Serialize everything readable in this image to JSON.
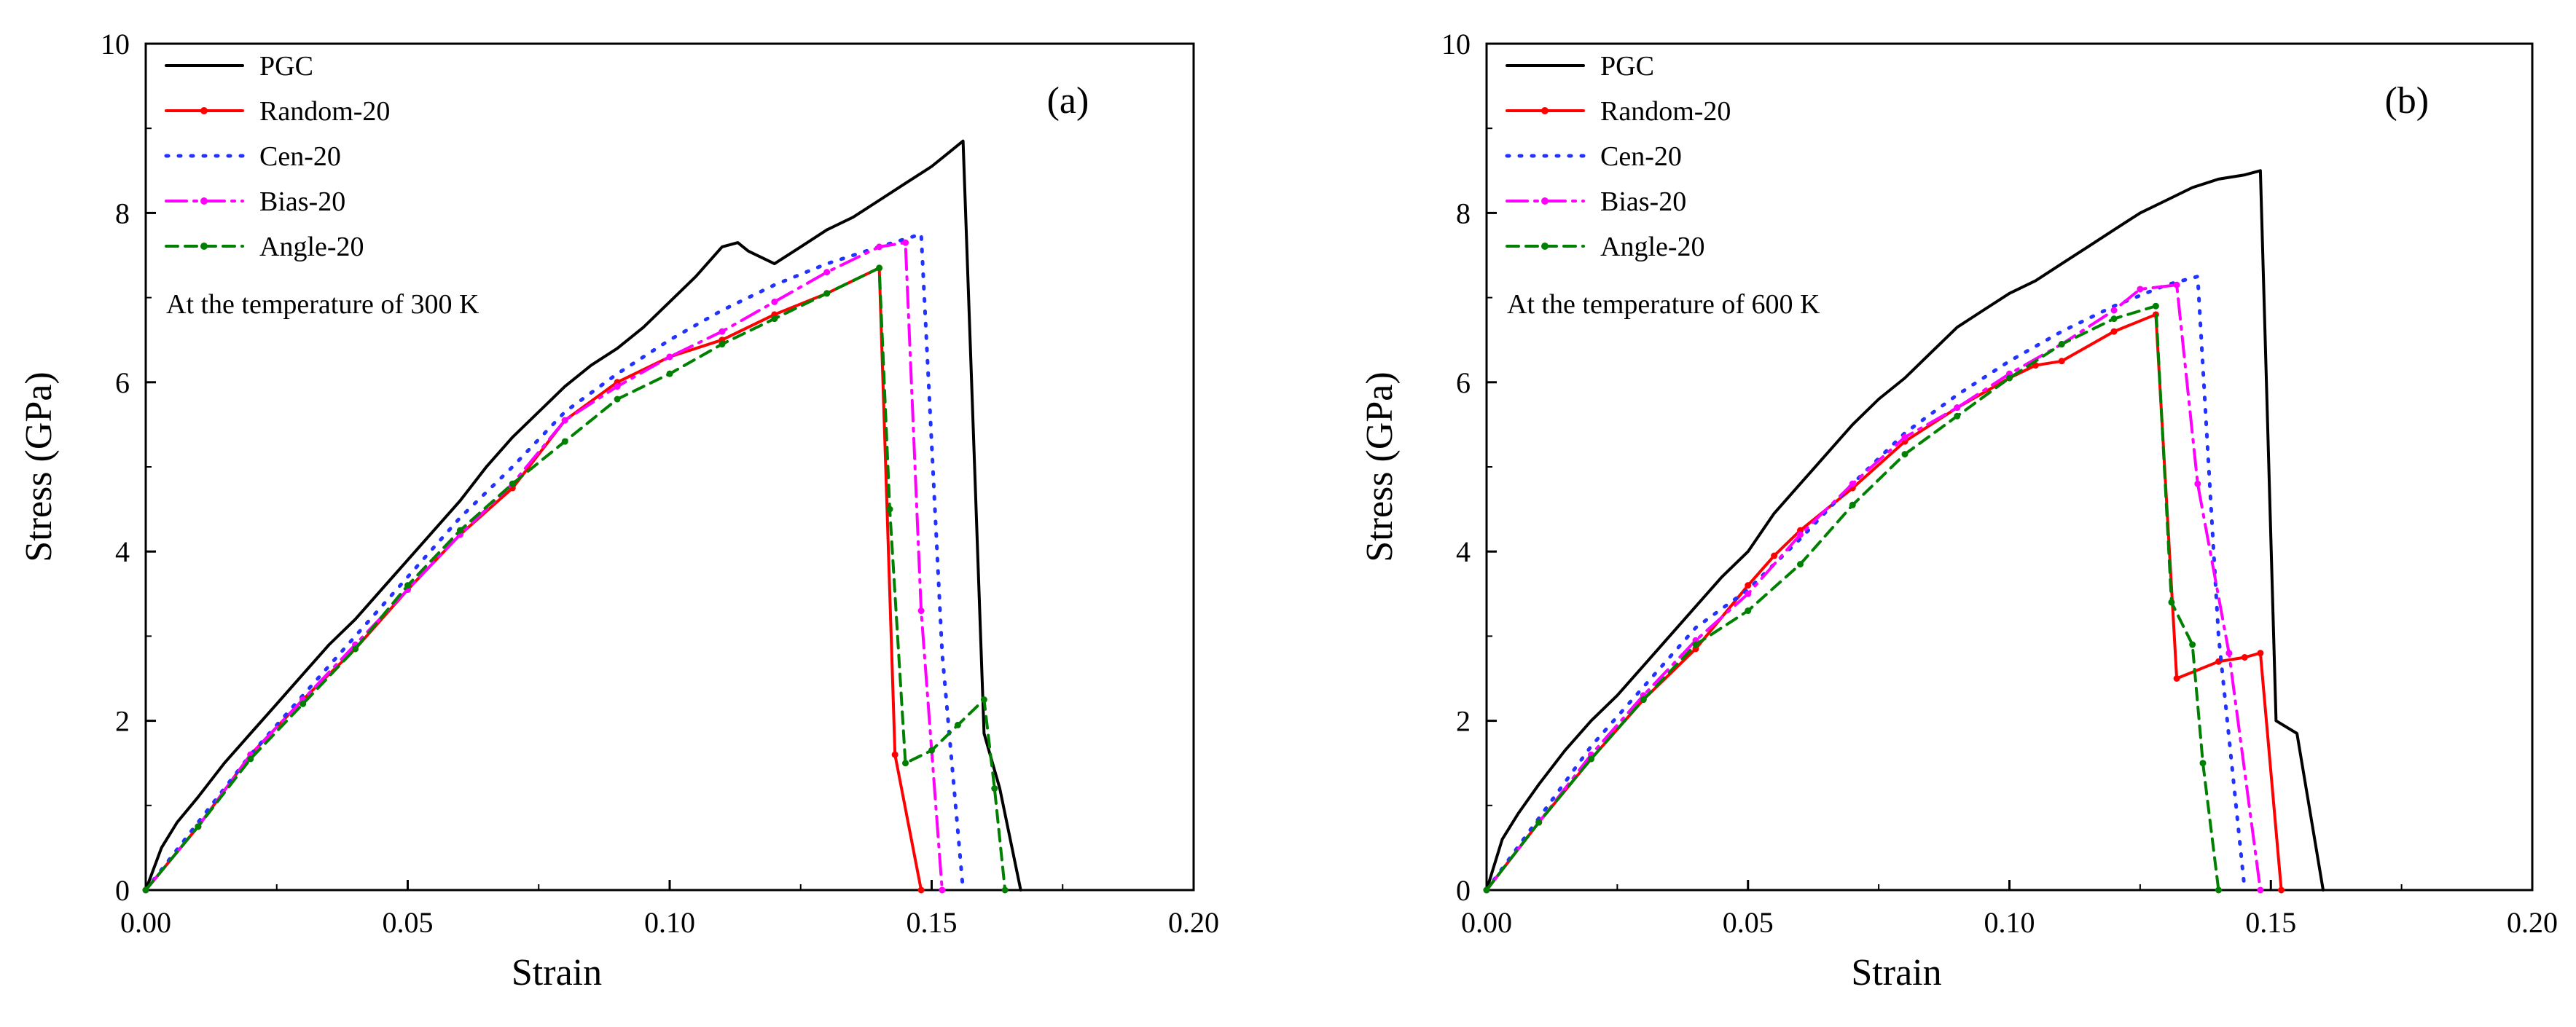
{
  "chart_data": [
    {
      "type": "line",
      "panel_label": "(a)",
      "annotation": "At the temperature of 300 K",
      "xlabel": "Strain",
      "ylabel": "Stress (GPa)",
      "xlim": [
        0,
        0.2
      ],
      "ylim": [
        0,
        10
      ],
      "xticks": [
        "0.00",
        "0.05",
        "0.10",
        "0.15",
        "0.20"
      ],
      "yticks": [
        "0",
        "2",
        "4",
        "6",
        "8",
        "10"
      ],
      "legend": "top-left",
      "series": [
        {
          "name": "PGC",
          "color": "#000000",
          "dash": "solid",
          "marker": false,
          "x": [
            0,
            0.003,
            0.006,
            0.01,
            0.015,
            0.02,
            0.025,
            0.03,
            0.035,
            0.04,
            0.045,
            0.05,
            0.055,
            0.06,
            0.065,
            0.07,
            0.075,
            0.08,
            0.085,
            0.09,
            0.095,
            0.1,
            0.105,
            0.11,
            0.113,
            0.115,
            0.12,
            0.125,
            0.13,
            0.135,
            0.14,
            0.145,
            0.15,
            0.153,
            0.156,
            0.16,
            0.163,
            0.167
          ],
          "y": [
            0,
            0.5,
            0.8,
            1.1,
            1.5,
            1.85,
            2.2,
            2.55,
            2.9,
            3.2,
            3.55,
            3.9,
            4.25,
            4.6,
            5.0,
            5.35,
            5.65,
            5.95,
            6.2,
            6.4,
            6.65,
            6.95,
            7.25,
            7.6,
            7.65,
            7.55,
            7.4,
            7.6,
            7.8,
            7.95,
            8.15,
            8.35,
            8.55,
            8.7,
            8.85,
            1.85,
            1.2,
            0
          ]
        },
        {
          "name": "Random-20",
          "color": "#ff0000",
          "dash": "solid",
          "marker": true,
          "x": [
            0,
            0.01,
            0.02,
            0.03,
            0.04,
            0.05,
            0.06,
            0.07,
            0.08,
            0.09,
            0.1,
            0.11,
            0.12,
            0.13,
            0.14,
            0.143,
            0.148
          ],
          "y": [
            0,
            0.75,
            1.6,
            2.25,
            2.85,
            3.55,
            4.2,
            4.75,
            5.55,
            6.0,
            6.3,
            6.5,
            6.8,
            7.05,
            7.35,
            1.6,
            0
          ]
        },
        {
          "name": "Cen-20",
          "color": "#2233ff",
          "dash": "dot",
          "marker": false,
          "x": [
            0,
            0.01,
            0.02,
            0.03,
            0.04,
            0.05,
            0.06,
            0.07,
            0.08,
            0.09,
            0.1,
            0.11,
            0.12,
            0.13,
            0.14,
            0.148,
            0.152,
            0.156
          ],
          "y": [
            0,
            0.8,
            1.6,
            2.3,
            3.0,
            3.7,
            4.4,
            5.0,
            5.65,
            6.1,
            6.5,
            6.85,
            7.15,
            7.4,
            7.6,
            7.75,
            2.8,
            0
          ]
        },
        {
          "name": "Bias-20",
          "color": "#ff00ff",
          "dash": "dashdot",
          "marker": true,
          "x": [
            0,
            0.01,
            0.02,
            0.03,
            0.04,
            0.05,
            0.06,
            0.07,
            0.08,
            0.09,
            0.1,
            0.11,
            0.12,
            0.13,
            0.14,
            0.145,
            0.148,
            0.152
          ],
          "y": [
            0,
            0.75,
            1.6,
            2.25,
            2.9,
            3.55,
            4.2,
            4.8,
            5.55,
            5.95,
            6.3,
            6.6,
            6.95,
            7.3,
            7.6,
            7.65,
            3.3,
            0
          ]
        },
        {
          "name": "Angle-20",
          "color": "#008000",
          "dash": "dash",
          "marker": true,
          "x": [
            0,
            0.01,
            0.02,
            0.03,
            0.04,
            0.05,
            0.06,
            0.07,
            0.08,
            0.09,
            0.1,
            0.11,
            0.12,
            0.13,
            0.14,
            0.142,
            0.145,
            0.15,
            0.155,
            0.16,
            0.162,
            0.164
          ],
          "y": [
            0,
            0.75,
            1.55,
            2.2,
            2.85,
            3.6,
            4.25,
            4.8,
            5.3,
            5.8,
            6.1,
            6.45,
            6.75,
            7.05,
            7.35,
            4.5,
            1.5,
            1.65,
            1.95,
            2.25,
            1.2,
            0
          ]
        }
      ]
    },
    {
      "type": "line",
      "panel_label": "(b)",
      "annotation": "At the temperature of 600 K",
      "xlabel": "Strain",
      "ylabel": "Stress (GPa)",
      "xlim": [
        0,
        0.2
      ],
      "ylim": [
        0,
        10
      ],
      "xticks": [
        "0.00",
        "0.05",
        "0.10",
        "0.15",
        "0.20"
      ],
      "yticks": [
        "0",
        "2",
        "4",
        "6",
        "8",
        "10"
      ],
      "legend": "top-left",
      "series": [
        {
          "name": "PGC",
          "color": "#000000",
          "dash": "solid",
          "marker": false,
          "x": [
            0,
            0.003,
            0.006,
            0.01,
            0.015,
            0.02,
            0.025,
            0.03,
            0.035,
            0.04,
            0.045,
            0.05,
            0.055,
            0.06,
            0.065,
            0.07,
            0.075,
            0.08,
            0.085,
            0.09,
            0.095,
            0.1,
            0.105,
            0.11,
            0.115,
            0.12,
            0.125,
            0.13,
            0.135,
            0.14,
            0.145,
            0.148,
            0.151,
            0.155,
            0.16
          ],
          "y": [
            0,
            0.6,
            0.9,
            1.25,
            1.65,
            2.0,
            2.3,
            2.65,
            3.0,
            3.35,
            3.7,
            4.0,
            4.45,
            4.8,
            5.15,
            5.5,
            5.8,
            6.05,
            6.35,
            6.65,
            6.85,
            7.05,
            7.2,
            7.4,
            7.6,
            7.8,
            8.0,
            8.15,
            8.3,
            8.4,
            8.45,
            8.5,
            2.0,
            1.85,
            0
          ]
        },
        {
          "name": "Random-20",
          "color": "#ff0000",
          "dash": "solid",
          "marker": true,
          "x": [
            0,
            0.01,
            0.02,
            0.03,
            0.04,
            0.05,
            0.055,
            0.06,
            0.07,
            0.08,
            0.09,
            0.1,
            0.105,
            0.11,
            0.12,
            0.128,
            0.132,
            0.14,
            0.145,
            0.148,
            0.152
          ],
          "y": [
            0,
            0.8,
            1.55,
            2.25,
            2.85,
            3.6,
            3.95,
            4.25,
            4.75,
            5.3,
            5.7,
            6.05,
            6.2,
            6.25,
            6.6,
            6.8,
            2.5,
            2.7,
            2.75,
            2.8,
            0
          ]
        },
        {
          "name": "Cen-20",
          "color": "#2233ff",
          "dash": "dot",
          "marker": false,
          "x": [
            0,
            0.01,
            0.02,
            0.03,
            0.04,
            0.05,
            0.06,
            0.07,
            0.08,
            0.09,
            0.1,
            0.11,
            0.12,
            0.13,
            0.136,
            0.14,
            0.145
          ],
          "y": [
            0,
            0.85,
            1.7,
            2.4,
            3.1,
            3.55,
            4.15,
            4.8,
            5.4,
            5.85,
            6.25,
            6.6,
            6.9,
            7.15,
            7.25,
            3.0,
            0
          ]
        },
        {
          "name": "Bias-20",
          "color": "#ff00ff",
          "dash": "dashdot",
          "marker": true,
          "x": [
            0,
            0.01,
            0.02,
            0.03,
            0.04,
            0.05,
            0.06,
            0.07,
            0.08,
            0.09,
            0.1,
            0.11,
            0.12,
            0.125,
            0.132,
            0.136,
            0.142,
            0.148
          ],
          "y": [
            0,
            0.8,
            1.6,
            2.3,
            2.95,
            3.5,
            4.2,
            4.8,
            5.35,
            5.7,
            6.1,
            6.45,
            6.85,
            7.1,
            7.15,
            4.8,
            2.8,
            0
          ]
        },
        {
          "name": "Angle-20",
          "color": "#008000",
          "dash": "dash",
          "marker": true,
          "x": [
            0,
            0.01,
            0.02,
            0.03,
            0.04,
            0.05,
            0.06,
            0.07,
            0.08,
            0.09,
            0.1,
            0.11,
            0.12,
            0.128,
            0.131,
            0.135,
            0.137,
            0.14
          ],
          "y": [
            0,
            0.8,
            1.55,
            2.25,
            2.9,
            3.3,
            3.85,
            4.55,
            5.15,
            5.6,
            6.05,
            6.45,
            6.75,
            6.9,
            3.4,
            2.9,
            1.5,
            0
          ]
        }
      ]
    }
  ]
}
